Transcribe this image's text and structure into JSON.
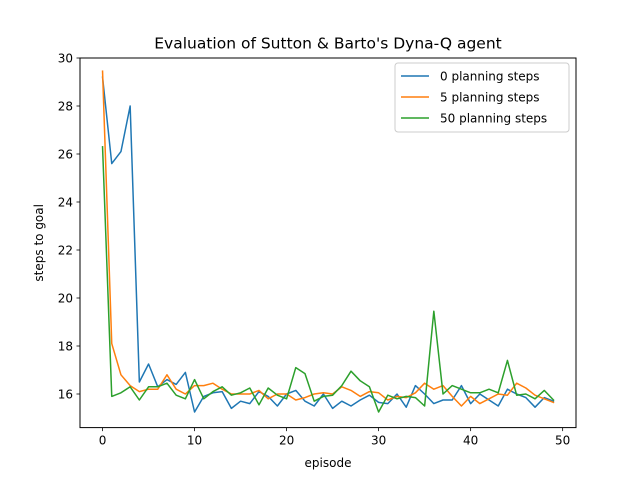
{
  "chart_data": {
    "type": "line",
    "title": "Evaluation of Sutton & Barto's Dyna-Q agent",
    "xlabel": "episode",
    "ylabel": "steps to goal",
    "xlim": [
      -2.45,
      51.45
    ],
    "ylim": [
      14.6,
      30.0
    ],
    "xticks": [
      0,
      10,
      20,
      30,
      40,
      50
    ],
    "yticks": [
      16,
      18,
      20,
      22,
      24,
      26,
      28,
      30
    ],
    "grid": false,
    "legend_position": "upper right",
    "x": [
      0,
      1,
      2,
      3,
      4,
      5,
      6,
      7,
      8,
      9,
      10,
      11,
      12,
      13,
      14,
      15,
      16,
      17,
      18,
      19,
      20,
      21,
      22,
      23,
      24,
      25,
      26,
      27,
      28,
      29,
      30,
      31,
      32,
      33,
      34,
      35,
      36,
      37,
      38,
      39,
      40,
      41,
      42,
      43,
      44,
      45,
      46,
      47,
      48,
      49
    ],
    "series": [
      {
        "name": "0 planning steps",
        "color": "#1f77b4",
        "values": [
          29.2,
          25.6,
          26.1,
          28.0,
          16.5,
          17.25,
          16.3,
          16.6,
          16.4,
          16.9,
          15.25,
          15.9,
          16.05,
          16.1,
          15.4,
          15.7,
          15.6,
          16.1,
          15.9,
          15.5,
          16.0,
          16.15,
          15.7,
          15.5,
          16.0,
          15.4,
          15.7,
          15.5,
          15.75,
          15.95,
          15.65,
          15.6,
          16.0,
          15.45,
          16.35,
          16.0,
          15.6,
          15.75,
          15.75,
          16.35,
          15.6,
          16.0,
          15.75,
          15.5,
          16.2,
          16.0,
          15.85,
          15.45,
          15.85,
          15.7
        ]
      },
      {
        "name": "5 planning steps",
        "color": "#ff7f0e",
        "values": [
          29.45,
          18.1,
          16.8,
          16.35,
          16.1,
          16.2,
          16.2,
          16.8,
          16.2,
          16.0,
          16.35,
          16.35,
          16.45,
          16.2,
          16.0,
          16.0,
          16.0,
          16.15,
          15.8,
          16.0,
          16.0,
          15.75,
          15.85,
          16.0,
          16.05,
          16.0,
          16.3,
          16.15,
          15.9,
          16.1,
          16.05,
          15.75,
          15.9,
          15.85,
          16.05,
          16.45,
          16.2,
          16.35,
          15.9,
          15.5,
          15.9,
          15.6,
          15.8,
          16.0,
          15.95,
          16.45,
          16.25,
          15.95,
          15.8,
          15.65
        ]
      },
      {
        "name": "50 planning steps",
        "color": "#2ca02c",
        "values": [
          26.3,
          15.9,
          16.05,
          16.3,
          15.75,
          16.3,
          16.3,
          16.45,
          15.95,
          15.8,
          16.6,
          15.8,
          16.1,
          16.3,
          15.95,
          16.05,
          16.25,
          15.55,
          16.25,
          15.95,
          15.8,
          17.1,
          16.85,
          15.7,
          15.9,
          15.95,
          16.35,
          16.95,
          16.55,
          16.3,
          15.25,
          15.95,
          15.8,
          15.9,
          15.85,
          15.5,
          19.45,
          16.0,
          16.35,
          16.2,
          16.05,
          16.05,
          16.2,
          16.05,
          17.4,
          15.95,
          16.0,
          15.8,
          16.15,
          15.75
        ]
      }
    ]
  }
}
